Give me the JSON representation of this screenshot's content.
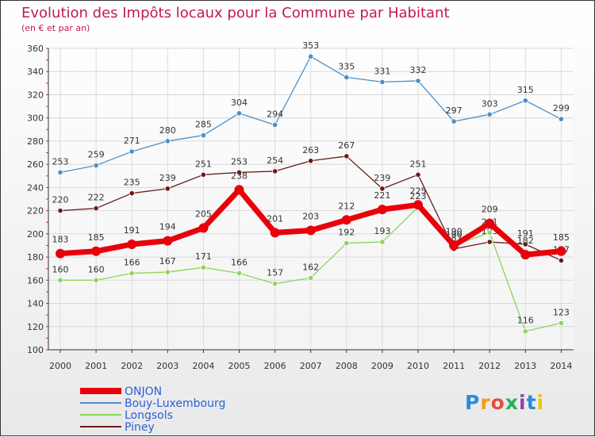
{
  "title": "Evolution des Impôts locaux pour la Commune par Habitant",
  "subtitle": "(en € et par an)",
  "logo_text": "Proxiti",
  "chart_data": {
    "type": "line",
    "title": "Evolution des Impôts locaux pour la Commune par Habitant",
    "subtitle": "(en € et par an)",
    "xlabel": "",
    "ylabel": "",
    "x": [
      "2000",
      "2001",
      "2002",
      "2003",
      "2004",
      "2005",
      "2006",
      "2007",
      "2008",
      "2009",
      "2010",
      "2011",
      "2012",
      "2013",
      "2014"
    ],
    "ylim": [
      100,
      360
    ],
    "yticks": [
      100,
      120,
      140,
      160,
      180,
      200,
      220,
      240,
      260,
      280,
      300,
      320,
      340,
      360
    ],
    "grid": true,
    "legend_position": "bottom-left",
    "series": [
      {
        "name": "ONJON",
        "color": "#e8000b",
        "values": [
          183,
          185,
          191,
          194,
          205,
          238,
          201,
          203,
          212,
          221,
          225,
          190,
          209,
          182,
          185
        ]
      },
      {
        "name": "Bouy-Luxembourg",
        "color": "#4a90c8",
        "values": [
          253,
          259,
          271,
          280,
          285,
          304,
          294,
          353,
          335,
          331,
          332,
          297,
          303,
          315,
          299
        ]
      },
      {
        "name": "Longsols",
        "color": "#8ed45a",
        "values": [
          160,
          160,
          166,
          167,
          171,
          166,
          157,
          162,
          192,
          193,
          223,
          190,
          201,
          116,
          123
        ]
      },
      {
        "name": "Piney",
        "color": "#6b1a1a",
        "values": [
          220,
          222,
          235,
          239,
          251,
          253,
          254,
          263,
          267,
          239,
          251,
          187,
          193,
          191,
          177
        ]
      }
    ]
  }
}
